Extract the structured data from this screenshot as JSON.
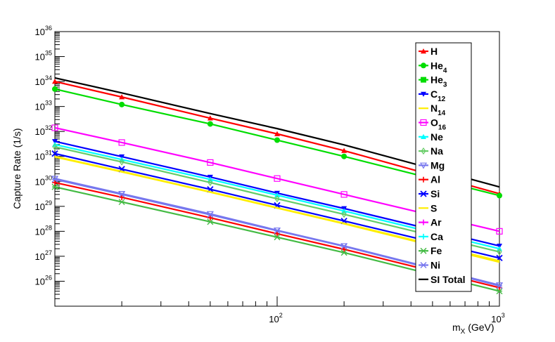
{
  "chart_data": {
    "type": "line",
    "xscale": "log",
    "yscale": "log",
    "xlim": [
      10,
      1000
    ],
    "ylim": [
      1e+25,
      1e+36
    ],
    "xlabel": "m_X (GeV)",
    "ylabel": "Capture Rate (1/s)",
    "x_tick_labels": [
      "10^2",
      "10^3"
    ],
    "y_tick_labels": [
      "10^26",
      "10^27",
      "10^28",
      "10^29",
      "10^30",
      "10^31",
      "10^32",
      "10^33",
      "10^34",
      "10^35",
      "10^36"
    ],
    "x": [
      10,
      20,
      50,
      100,
      200,
      1000
    ],
    "legend_position": "right",
    "series": [
      {
        "name": "H",
        "label_main": "H",
        "label_sub": "",
        "color": "#ff0000",
        "marker": "triangle",
        "values": [
          1e+34,
          2.4e+33,
          3.4e+32,
          8e+31,
          1.7e+31,
          3.2e+29
        ]
      },
      {
        "name": "He4",
        "label_main": "He",
        "label_sub": "4",
        "color": "#00dd00",
        "marker": "circle",
        "values": [
          5e+33,
          1.2e+33,
          2e+32,
          4.5e+31,
          1e+31,
          2.7e+29
        ]
      },
      {
        "name": "He3",
        "label_main": "He",
        "label_sub": "3",
        "color": "#00dd00",
        "marker": "square",
        "values": [
          null,
          null,
          null,
          null,
          null,
          null
        ]
      },
      {
        "name": "C12",
        "label_main": "C",
        "label_sub": "12",
        "color": "#0000ff",
        "marker": "triangle-down",
        "values": [
          4e+31,
          9.8e+30,
          1.5e+30,
          3.4e+29,
          8.2e+28,
          2.6e+27
        ]
      },
      {
        "name": "N14",
        "label_main": "N",
        "label_sub": "14",
        "color": "#ffee00",
        "marker": "none",
        "values": [
          9.5e+30,
          2.4e+30,
          3.7e+29,
          8.5e+28,
          2e+28,
          5.8e+26
        ]
      },
      {
        "name": "O16",
        "label_main": "O",
        "label_sub": "16",
        "color": "#ff00ff",
        "marker": "open-square",
        "values": [
          1.4e+32,
          3.6e+31,
          5.7e+30,
          1.3e+30,
          3e+29,
          1e+28
        ]
      },
      {
        "name": "Ne",
        "label_main": "Ne",
        "label_sub": "",
        "color": "#00ffff",
        "marker": "triangle",
        "values": [
          3e+31,
          7.5e+30,
          1.2e+30,
          2.8e+29,
          6.5e+28,
          2e+27
        ]
      },
      {
        "name": "Na",
        "label_main": "Na",
        "label_sub": "",
        "color": "#66cc66",
        "marker": "open-diamond",
        "values": [
          2.4e+31,
          6e+30,
          9e+29,
          2e+29,
          4.8e+28,
          1.5e+27
        ]
      },
      {
        "name": "Mg",
        "label_main": "Mg",
        "label_sub": "",
        "color": "#7777ee",
        "marker": "open-triangle-down",
        "values": [
          1.3e+30,
          3.2e+29,
          5e+28,
          1.1e+28,
          2.6e+27,
          7e+25
        ]
      },
      {
        "name": "Al",
        "label_main": "Al",
        "label_sub": "",
        "color": "#ff0000",
        "marker": "plus",
        "values": [
          9e+29,
          2.3e+29,
          3.5e+28,
          8e+27,
          1.9e+27,
          5.5e+25
        ]
      },
      {
        "name": "Si",
        "label_main": "Si",
        "label_sub": "",
        "color": "#0000ff",
        "marker": "x",
        "values": [
          1.3e+31,
          3.1e+30,
          4.8e+29,
          1.1e+29,
          2.6e+28,
          8.5e+26
        ]
      },
      {
        "name": "S",
        "label_main": "S",
        "label_sub": "",
        "color": "#ffee00",
        "marker": "none",
        "values": [
          1e+31,
          2.5e+30,
          3.8e+29,
          8.8e+28,
          2.1e+28,
          6.5e+26
        ]
      },
      {
        "name": "Ar",
        "label_main": "Ar",
        "label_sub": "",
        "color": "#ff00ff",
        "marker": "plus",
        "values": [
          null,
          null,
          null,
          null,
          null,
          null
        ]
      },
      {
        "name": "Ca",
        "label_main": "Ca",
        "label_sub": "",
        "color": "#00ffff",
        "marker": "plus",
        "values": [
          null,
          null,
          null,
          null,
          null,
          null
        ]
      },
      {
        "name": "Fe",
        "label_main": "Fe",
        "label_sub": "",
        "color": "#44bb44",
        "marker": "star",
        "values": [
          6e+29,
          1.5e+29,
          2.4e+28,
          5.8e+27,
          1.4e+27,
          4e+25
        ]
      },
      {
        "name": "Ni",
        "label_main": "Ni",
        "label_sub": "",
        "color": "#7777ee",
        "marker": "star",
        "values": [
          1.2e+30,
          3e+29,
          4.6e+28,
          1.05e+28,
          2.5e+27,
          6.5e+25
        ]
      },
      {
        "name": "SI Total",
        "label_main": "SI Total",
        "label_sub": "",
        "color": "#000000",
        "marker": "none",
        "values": [
          1.4e+34,
          3.5e+33,
          5.2e+32,
          1.3e+32,
          2.9e+31,
          6e+29
        ]
      }
    ]
  }
}
